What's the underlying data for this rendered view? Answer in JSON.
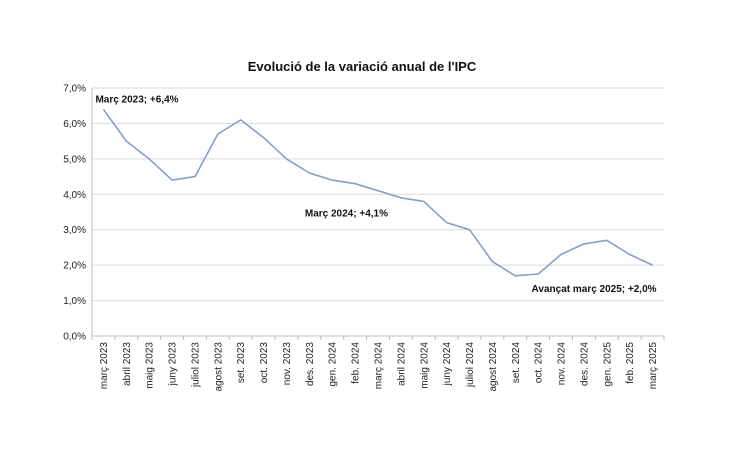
{
  "chart_data": {
    "type": "line",
    "title": "Evolució de la variació anual de l'IPC",
    "xlabel": "",
    "ylabel": "",
    "ylim": [
      0,
      7
    ],
    "ytick_labels": [
      "0,0%",
      "1,0%",
      "2,0%",
      "3,0%",
      "4,0%",
      "5,0%",
      "6,0%",
      "7,0%"
    ],
    "grid": true,
    "line_color": "#7fa1d0",
    "categories": [
      "març 2023",
      "abril 2023",
      "maig 2023",
      "juny 2023",
      "juliol 2023",
      "agost 2023",
      "set. 2023",
      "oct. 2023",
      "nov. 2023",
      "des. 2023",
      "gen. 2024",
      "feb. 2024",
      "març 2024",
      "abril 2024",
      "maig 2024",
      "juny 2024",
      "juliol 2024",
      "agost 2024",
      "set. 2024",
      "oct. 2024",
      "nov. 2024",
      "des. 2024",
      "gen. 2025",
      "feb. 2025",
      "març 2025"
    ],
    "series": [
      {
        "name": "IPC",
        "values": [
          6.4,
          5.5,
          5.0,
          4.4,
          4.5,
          5.7,
          6.1,
          5.6,
          5.0,
          4.6,
          4.4,
          4.3,
          4.1,
          3.9,
          3.8,
          3.2,
          3.0,
          2.1,
          1.7,
          1.75,
          2.3,
          2.6,
          2.7,
          2.3,
          2.0
        ]
      }
    ],
    "annotations": [
      {
        "text": "Març 2023; +6,4%",
        "index": 0
      },
      {
        "text": "Març 2024;  +4,1%",
        "index": 12
      },
      {
        "text": "Avançat març 2025; +2,0%",
        "index": 24
      }
    ]
  }
}
